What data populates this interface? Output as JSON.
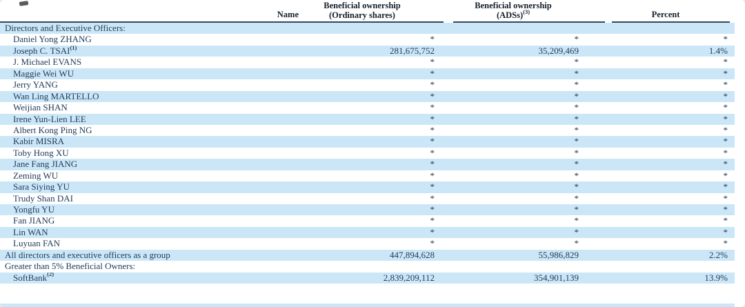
{
  "header": {
    "name_label": "Name",
    "ordinary": {
      "line1": "Beneficial ownership",
      "line2": "(Ordinary shares)"
    },
    "ads": {
      "line1": "Beneficial ownership",
      "line2": "(ADSs)",
      "superscript": "(3)"
    },
    "percent_label": "Percent"
  },
  "colors": {
    "row_highlight": "#cbe7f7",
    "text": "#223c5a",
    "header_text": "#131f2b",
    "rule": "#32465a"
  },
  "rows": [
    {
      "label": "Directors and Executive Officers:",
      "sup": "",
      "indent": false,
      "highlight": true,
      "ordinary": "",
      "ads": "",
      "percent": ""
    },
    {
      "label": "Daniel Yong ZHANG",
      "sup": "",
      "indent": true,
      "highlight": false,
      "ordinary": "*",
      "ads": "*",
      "percent": "*"
    },
    {
      "label": "Joseph C. TSAI",
      "sup": "(1)",
      "indent": true,
      "highlight": true,
      "ordinary": "281,675,752",
      "ads": "35,209,469",
      "percent": "1.4%"
    },
    {
      "label": "J. Michael EVANS",
      "sup": "",
      "indent": true,
      "highlight": false,
      "ordinary": "*",
      "ads": "*",
      "percent": "*"
    },
    {
      "label": "Maggie Wei WU",
      "sup": "",
      "indent": true,
      "highlight": true,
      "ordinary": "*",
      "ads": "*",
      "percent": "*"
    },
    {
      "label": "Jerry YANG",
      "sup": "",
      "indent": true,
      "highlight": false,
      "ordinary": "*",
      "ads": "*",
      "percent": "*"
    },
    {
      "label": "Wan Ling MARTELLO",
      "sup": "",
      "indent": true,
      "highlight": true,
      "ordinary": "*",
      "ads": "*",
      "percent": "*"
    },
    {
      "label": "Weijian SHAN",
      "sup": "",
      "indent": true,
      "highlight": false,
      "ordinary": "*",
      "ads": "*",
      "percent": "*"
    },
    {
      "label": "Irene Yun-Lien LEE",
      "sup": "",
      "indent": true,
      "highlight": true,
      "ordinary": "*",
      "ads": "*",
      "percent": "*"
    },
    {
      "label": "Albert Kong Ping NG",
      "sup": "",
      "indent": true,
      "highlight": false,
      "ordinary": "*",
      "ads": "*",
      "percent": "*"
    },
    {
      "label": "Kabir MISRA",
      "sup": "",
      "indent": true,
      "highlight": true,
      "ordinary": "*",
      "ads": "*",
      "percent": "*"
    },
    {
      "label": "Toby Hong XU",
      "sup": "",
      "indent": true,
      "highlight": false,
      "ordinary": "*",
      "ads": "*",
      "percent": "*"
    },
    {
      "label": "Jane Fang JIANG",
      "sup": "",
      "indent": true,
      "highlight": true,
      "ordinary": "*",
      "ads": "*",
      "percent": "*"
    },
    {
      "label": "Zeming WU",
      "sup": "",
      "indent": true,
      "highlight": false,
      "ordinary": "*",
      "ads": "*",
      "percent": "*"
    },
    {
      "label": "Sara Siying YU",
      "sup": "",
      "indent": true,
      "highlight": true,
      "ordinary": "*",
      "ads": "*",
      "percent": "*"
    },
    {
      "label": "Trudy Shan DAI",
      "sup": "",
      "indent": true,
      "highlight": false,
      "ordinary": "*",
      "ads": "*",
      "percent": "*"
    },
    {
      "label": "Yongfu YU",
      "sup": "",
      "indent": true,
      "highlight": true,
      "ordinary": "*",
      "ads": "*",
      "percent": "*"
    },
    {
      "label": "Fan JIANG",
      "sup": "",
      "indent": true,
      "highlight": false,
      "ordinary": "*",
      "ads": "*",
      "percent": "*"
    },
    {
      "label": "Lin WAN",
      "sup": "",
      "indent": true,
      "highlight": true,
      "ordinary": "*",
      "ads": "*",
      "percent": "*"
    },
    {
      "label": "Luyuan FAN",
      "sup": "",
      "indent": true,
      "highlight": false,
      "ordinary": "*",
      "ads": "*",
      "percent": "*"
    },
    {
      "label": "All directors and executive officers as a group",
      "sup": "",
      "indent": false,
      "highlight": true,
      "ordinary": "447,894,628",
      "ads": "55,986,829",
      "percent": "2.2%"
    },
    {
      "label": "Greater than 5% Beneficial Owners:",
      "sup": "",
      "indent": false,
      "highlight": false,
      "ordinary": "",
      "ads": "",
      "percent": ""
    },
    {
      "label": "SoftBank",
      "sup": "(2)",
      "indent": true,
      "highlight": true,
      "ordinary": "2,839,209,112",
      "ads": "354,901,139",
      "percent": "13.9%"
    }
  ]
}
